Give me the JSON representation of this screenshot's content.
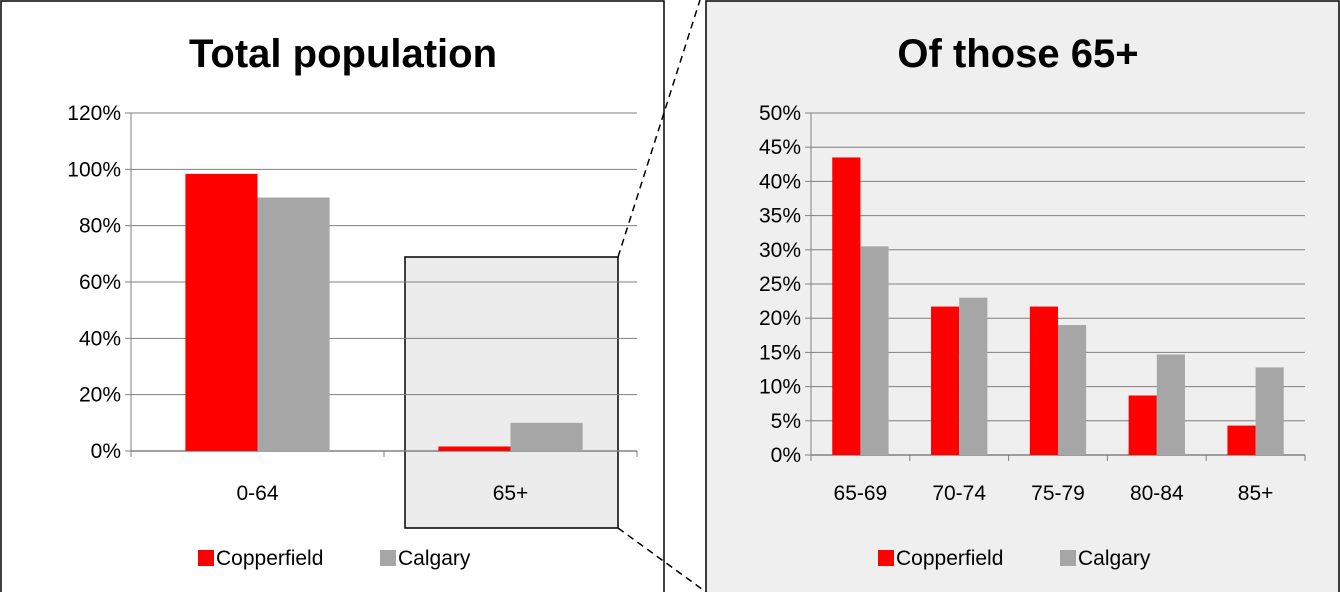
{
  "colors": {
    "copperfield": "#ff0000",
    "calgary": "#a6a6a6",
    "panel_right_bg": "#efefef",
    "highlight_bg": "#ececec",
    "grid": "#7f7f7f"
  },
  "chart_data": [
    {
      "type": "bar",
      "title": "Total population",
      "categories": [
        "0-64",
        "65+"
      ],
      "series": [
        {
          "name": "Copperfield",
          "values": [
            98.4,
            1.6
          ]
        },
        {
          "name": "Calgary",
          "values": [
            90.0,
            10.0
          ]
        }
      ],
      "y_ticks": [
        "0%",
        "20%",
        "40%",
        "60%",
        "80%",
        "100%",
        "120%"
      ],
      "ylim": [
        0,
        120
      ],
      "grid": true,
      "legend_position": "bottom"
    },
    {
      "type": "bar",
      "title": "Of those 65+",
      "categories": [
        "65-69",
        "70-74",
        "75-79",
        "80-84",
        "85+"
      ],
      "series": [
        {
          "name": "Copperfield",
          "values": [
            43.5,
            21.7,
            21.7,
            8.7,
            4.3
          ]
        },
        {
          "name": "Calgary",
          "values": [
            30.5,
            23.0,
            19.0,
            14.7,
            12.8
          ]
        }
      ],
      "y_ticks": [
        "0%",
        "5%",
        "10%",
        "15%",
        "20%",
        "25%",
        "30%",
        "35%",
        "40%",
        "45%",
        "50%"
      ],
      "ylim": [
        0,
        50
      ],
      "grid": true,
      "legend_position": "bottom"
    }
  ]
}
